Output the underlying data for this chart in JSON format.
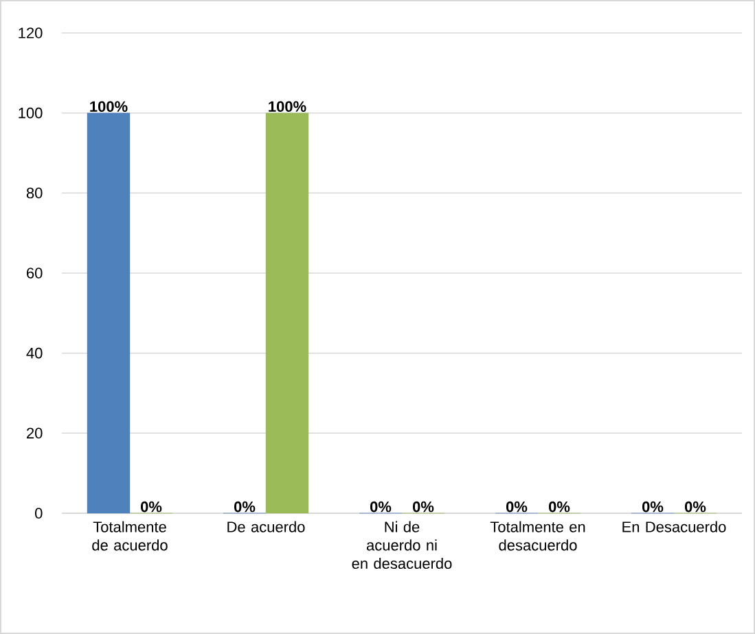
{
  "chart_data": {
    "type": "bar",
    "categories": [
      "Totalmente de acuerdo",
      "De acuerdo",
      "Ni de acuerdo ni en desacuerdo",
      "Totalmente en desacuerdo",
      "En Desacuerdo"
    ],
    "series": [
      {
        "color": "#4f81bd",
        "values": [
          100,
          0,
          0,
          0,
          0
        ],
        "value_labels": [
          "100%",
          "0%",
          "0%",
          "0%",
          "0%"
        ]
      },
      {
        "color": "#9bbb59",
        "values": [
          0,
          100,
          0,
          0,
          0
        ],
        "value_labels": [
          "0%",
          "100%",
          "0%",
          "0%",
          "0%"
        ]
      }
    ],
    "ylim": [
      0,
      120
    ],
    "yticks": [
      0,
      20,
      40,
      60,
      80,
      100,
      120
    ],
    "grid": "y"
  }
}
